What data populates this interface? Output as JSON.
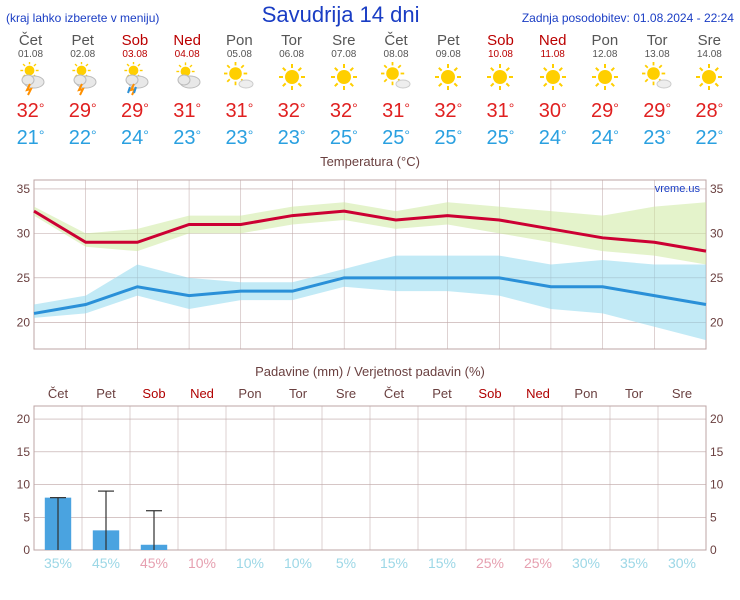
{
  "header": {
    "left": "(kraj lahko izberete v meniju)",
    "title": "Savudrija 14 dni",
    "right": "Zadnja posodobitev: 01.08.2024 - 22:24"
  },
  "colors": {
    "title": "#1a3dc4",
    "hi": "#e02020",
    "lo": "#2aa0e0",
    "weekend": "#b00000",
    "weekday": "#555555",
    "grid": "#bda5a5",
    "axis_text": "#6a4040",
    "temp_hi_line": "#cc0033",
    "temp_hi_band": "#cdeaa0",
    "temp_lo_line": "#2a90d8",
    "temp_lo_band": "#8fd9ee",
    "precip_bar": "#4aa3e0",
    "precip_prob_weekday": "#9cd7e6",
    "precip_prob_weekend": "#e6a0b0",
    "whisker": "#303030"
  },
  "days": [
    {
      "label": "Čet",
      "date": "01.08",
      "weekend": false,
      "icon": "storm",
      "hi": 32,
      "lo": 21
    },
    {
      "label": "Pet",
      "date": "02.08",
      "weekend": false,
      "icon": "storm",
      "hi": 29,
      "lo": 22
    },
    {
      "label": "Sob",
      "date": "03.08",
      "weekend": true,
      "icon": "storm-rain",
      "hi": 29,
      "lo": 24
    },
    {
      "label": "Ned",
      "date": "04.08",
      "weekend": true,
      "icon": "partly-cloudy",
      "hi": 31,
      "lo": 23
    },
    {
      "label": "Pon",
      "date": "05.08",
      "weekend": false,
      "icon": "mostly-sunny",
      "hi": 31,
      "lo": 23
    },
    {
      "label": "Tor",
      "date": "06.08",
      "weekend": false,
      "icon": "sun",
      "hi": 32,
      "lo": 23
    },
    {
      "label": "Sre",
      "date": "07.08",
      "weekend": false,
      "icon": "sun",
      "hi": 32,
      "lo": 25
    },
    {
      "label": "Čet",
      "date": "08.08",
      "weekend": false,
      "icon": "mostly-sunny",
      "hi": 31,
      "lo": 25
    },
    {
      "label": "Pet",
      "date": "09.08",
      "weekend": false,
      "icon": "sun",
      "hi": 32,
      "lo": 25
    },
    {
      "label": "Sob",
      "date": "10.08",
      "weekend": true,
      "icon": "sun",
      "hi": 31,
      "lo": 25
    },
    {
      "label": "Ned",
      "date": "11.08",
      "weekend": true,
      "icon": "sun",
      "hi": 30,
      "lo": 24
    },
    {
      "label": "Pon",
      "date": "12.08",
      "weekend": false,
      "icon": "sun",
      "hi": 29,
      "lo": 24
    },
    {
      "label": "Tor",
      "date": "13.08",
      "weekend": false,
      "icon": "mostly-sunny",
      "hi": 29,
      "lo": 23
    },
    {
      "label": "Sre",
      "date": "14.08",
      "weekend": false,
      "icon": "sun",
      "hi": 28,
      "lo": 22
    }
  ],
  "temp_chart": {
    "title": "Temperatura (°C)",
    "watermark": "vreme.us",
    "ylim": [
      17,
      36
    ],
    "yticks": [
      20,
      25,
      30,
      35
    ],
    "hi_line": [
      32.5,
      29.0,
      29.0,
      31.0,
      31.0,
      32.0,
      32.5,
      31.5,
      32.0,
      31.5,
      30.5,
      29.5,
      29.0,
      28.0
    ],
    "hi_band_up": [
      33.0,
      30.0,
      30.5,
      32.0,
      32.0,
      33.0,
      33.5,
      32.5,
      33.5,
      33.0,
      32.5,
      32.0,
      33.0,
      33.5
    ],
    "hi_band_lo": [
      32.0,
      28.5,
      28.0,
      30.0,
      30.0,
      31.0,
      31.5,
      30.5,
      31.0,
      30.0,
      29.0,
      28.0,
      27.5,
      26.5
    ],
    "lo_line": [
      21.0,
      22.0,
      24.0,
      23.0,
      23.5,
      23.5,
      25.0,
      25.0,
      25.0,
      25.0,
      24.0,
      24.0,
      23.0,
      22.0
    ],
    "lo_band_up": [
      22.0,
      23.0,
      26.5,
      25.0,
      24.5,
      24.5,
      26.0,
      27.5,
      27.5,
      27.5,
      26.5,
      27.0,
      26.5,
      26.5
    ],
    "lo_band_lo": [
      20.5,
      21.0,
      23.0,
      21.5,
      22.5,
      22.5,
      24.0,
      23.5,
      23.5,
      23.0,
      21.5,
      21.0,
      19.5,
      18.0
    ]
  },
  "precip_chart": {
    "title": "Padavine (mm) / Verjetnost padavin (%)",
    "ylim": [
      0,
      22
    ],
    "yticks": [
      0,
      5,
      10,
      15,
      20
    ],
    "day_labels": [
      "Čet",
      "Pet",
      "Sob",
      "Ned",
      "Pon",
      "Tor",
      "Sre",
      "Čet",
      "Pet",
      "Sob",
      "Ned",
      "Pon",
      "Tor",
      "Sre"
    ],
    "weekend": [
      false,
      false,
      true,
      true,
      false,
      false,
      false,
      false,
      false,
      true,
      true,
      false,
      false,
      false
    ],
    "bar": [
      8.0,
      3.0,
      0.8,
      0,
      0,
      0,
      0,
      0,
      0,
      0,
      0,
      0,
      0,
      0
    ],
    "whisker_hi": [
      8.0,
      9.0,
      6.0,
      0,
      0,
      0,
      0,
      0,
      0,
      0,
      0,
      0,
      0,
      0
    ],
    "prob": [
      "35%",
      "45%",
      "45%",
      "10%",
      "10%",
      "10%",
      "5%",
      "15%",
      "15%",
      "25%",
      "25%",
      "30%",
      "35%",
      "30%"
    ]
  }
}
